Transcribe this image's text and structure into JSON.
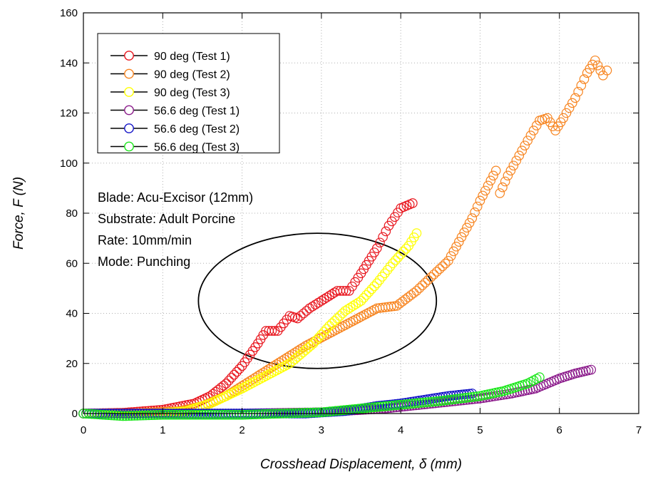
{
  "chart_data": {
    "type": "scatter",
    "xlabel": "Crosshead Displacement, δ (mm)",
    "ylabel": "Force, F (N)",
    "xlim": [
      0,
      7
    ],
    "ylim": [
      0,
      160
    ],
    "xticks": [
      0,
      1,
      2,
      3,
      4,
      5,
      6,
      7
    ],
    "yticks": [
      0,
      20,
      40,
      60,
      80,
      100,
      120,
      140,
      160
    ],
    "grid": true,
    "legend_position": "top-left",
    "marker": "open-circle",
    "annotations": [
      "Blade: Acu-Excisor (12mm)",
      "Substrate: Adult Porcine",
      "Rate: 10mm/min",
      "Mode: Punching"
    ],
    "ellipse": {
      "center": [
        2.95,
        45
      ],
      "radius_x": 1.5,
      "radius_y": 27
    },
    "series": [
      {
        "name": "90 deg (Test 1)",
        "color": "#e8141c",
        "points": [
          [
            0,
            0
          ],
          [
            0.5,
            0.3
          ],
          [
            1.0,
            1.5
          ],
          [
            1.4,
            4
          ],
          [
            1.6,
            7
          ],
          [
            1.8,
            12
          ],
          [
            2.0,
            19
          ],
          [
            2.2,
            28
          ],
          [
            2.3,
            33
          ],
          [
            2.45,
            33
          ],
          [
            2.6,
            39
          ],
          [
            2.7,
            38
          ],
          [
            2.85,
            42
          ],
          [
            3.0,
            45
          ],
          [
            3.2,
            49
          ],
          [
            3.35,
            49
          ],
          [
            3.5,
            56
          ],
          [
            3.7,
            66
          ],
          [
            3.85,
            75
          ],
          [
            4.0,
            82
          ],
          [
            4.15,
            84
          ]
        ]
      },
      {
        "name": "90 deg (Test 2)",
        "color": "#f7841f",
        "points": [
          [
            0,
            0
          ],
          [
            0.6,
            0
          ],
          [
            1.2,
            1
          ],
          [
            1.5,
            3
          ],
          [
            1.8,
            7
          ],
          [
            2.0,
            11
          ],
          [
            2.3,
            17
          ],
          [
            2.5,
            21
          ],
          [
            2.8,
            27
          ],
          [
            3.1,
            32
          ],
          [
            3.4,
            37
          ],
          [
            3.7,
            42
          ],
          [
            3.95,
            43
          ],
          [
            4.2,
            49
          ],
          [
            4.6,
            61
          ],
          [
            4.9,
            78
          ],
          [
            5.0,
            85
          ],
          [
            5.2,
            97
          ],
          [
            5.25,
            88
          ],
          [
            5.35,
            95
          ],
          [
            5.6,
            109
          ],
          [
            5.75,
            117
          ],
          [
            5.85,
            118
          ],
          [
            5.95,
            113
          ],
          [
            6.05,
            118
          ],
          [
            6.2,
            126
          ],
          [
            6.35,
            136
          ],
          [
            6.45,
            141
          ],
          [
            6.55,
            135
          ],
          [
            6.6,
            137
          ]
        ]
      },
      {
        "name": "90 deg (Test 3)",
        "color": "#ffff00",
        "points": [
          [
            0,
            0
          ],
          [
            0.5,
            0
          ],
          [
            1.0,
            0
          ],
          [
            1.3,
            1
          ],
          [
            1.6,
            4
          ],
          [
            1.8,
            7
          ],
          [
            2.0,
            10
          ],
          [
            2.3,
            15
          ],
          [
            2.6,
            20
          ],
          [
            2.9,
            28
          ],
          [
            3.1,
            35
          ],
          [
            3.3,
            41
          ],
          [
            3.5,
            45
          ],
          [
            3.7,
            52
          ],
          [
            3.9,
            60
          ],
          [
            4.1,
            67
          ],
          [
            4.2,
            72
          ]
        ]
      },
      {
        "name": "56.6 deg (Test 1)",
        "color": "#8b1a8b",
        "points": [
          [
            0,
            0
          ],
          [
            1.0,
            0
          ],
          [
            2.0,
            0
          ],
          [
            3.0,
            0.5
          ],
          [
            3.8,
            2
          ],
          [
            4.4,
            4
          ],
          [
            5.0,
            6
          ],
          [
            5.4,
            8
          ],
          [
            5.7,
            10
          ],
          [
            6.0,
            14
          ],
          [
            6.2,
            16
          ],
          [
            6.4,
            17.5
          ]
        ]
      },
      {
        "name": "56.6 deg (Test 2)",
        "color": "#1414c8",
        "points": [
          [
            0,
            0
          ],
          [
            1.0,
            0
          ],
          [
            2.0,
            0
          ],
          [
            2.8,
            0
          ],
          [
            3.3,
            1
          ],
          [
            3.7,
            3
          ],
          [
            4.0,
            4
          ],
          [
            4.3,
            5.5
          ],
          [
            4.6,
            7
          ],
          [
            4.9,
            8
          ]
        ]
      },
      {
        "name": "56.6 deg (Test 3)",
        "color": "#19e619",
        "points": [
          [
            0,
            0
          ],
          [
            0.5,
            -1
          ],
          [
            1.0,
            -0.5
          ],
          [
            1.5,
            -0.5
          ],
          [
            2.0,
            -0.5
          ],
          [
            2.5,
            0
          ],
          [
            3.0,
            0.5
          ],
          [
            3.5,
            2
          ],
          [
            4.0,
            3.5
          ],
          [
            4.5,
            5
          ],
          [
            5.0,
            7
          ],
          [
            5.3,
            9
          ],
          [
            5.6,
            12
          ],
          [
            5.75,
            14.5
          ]
        ]
      }
    ]
  }
}
